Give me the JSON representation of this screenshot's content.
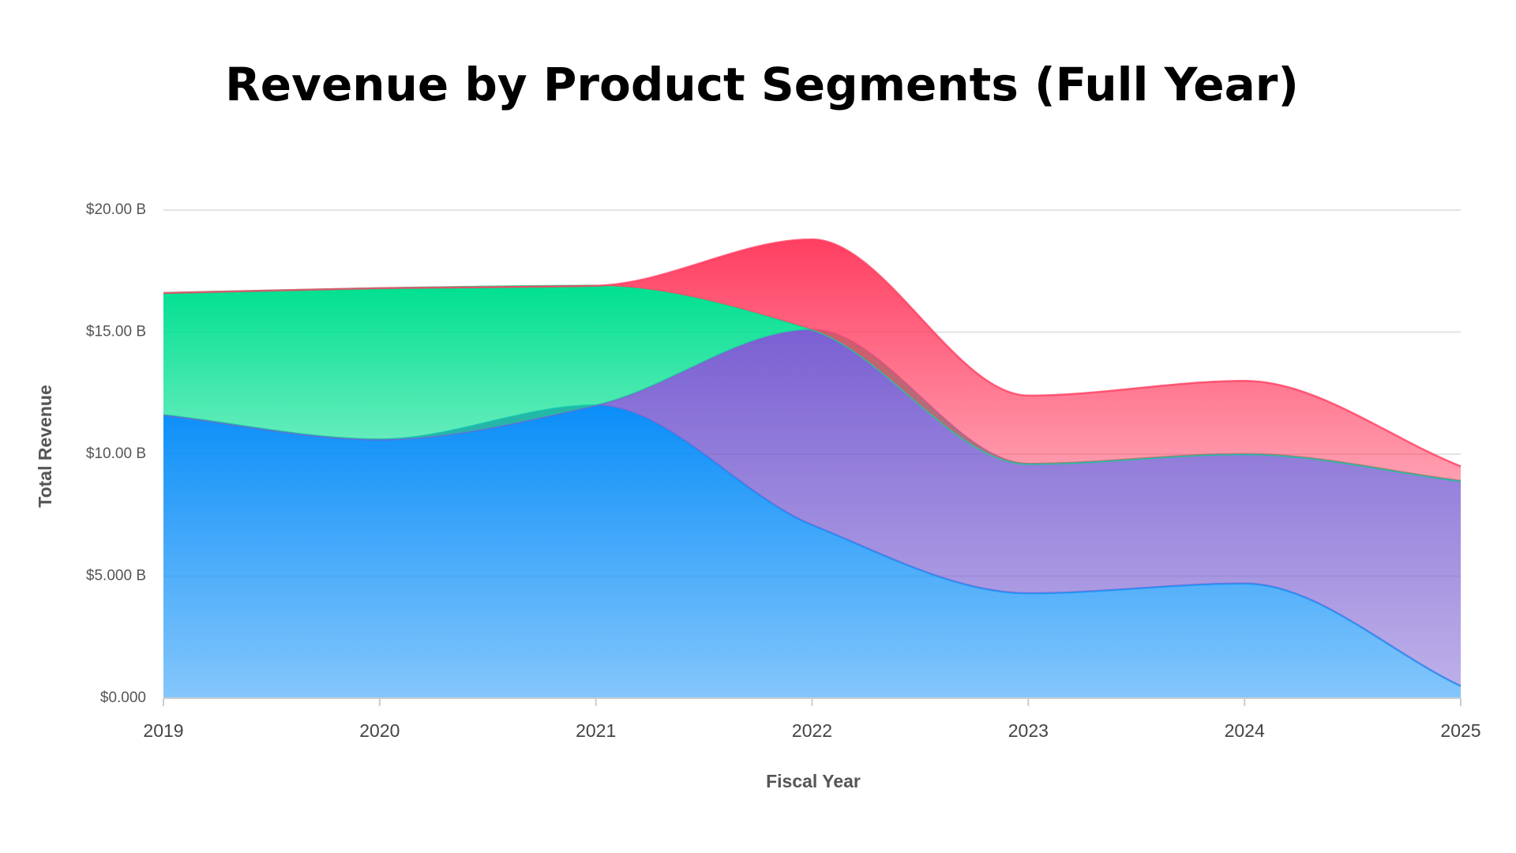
{
  "chart_data": {
    "type": "stacked_area",
    "title": "Revenue by Product Segments (Full Year)",
    "x_label": "Fiscal Year",
    "y_label": "Total Revenue",
    "categories": [
      "2019",
      "2020",
      "2021",
      "2022",
      "2023",
      "2024",
      "2025"
    ],
    "series": [
      {
        "color": "#0a8ef8",
        "values": [
          11.6,
          10.6,
          12.0,
          7.1,
          4.3,
          4.7,
          0.5
        ]
      },
      {
        "color": "#7a60d2",
        "values": [
          0,
          0,
          0,
          8.0,
          5.3,
          5.3,
          8.4
        ]
      },
      {
        "color": "#00e090",
        "values": [
          5.0,
          6.2,
          4.9,
          0,
          0,
          0,
          0
        ]
      },
      {
        "color": "#ff3f62",
        "values": [
          0,
          0,
          0,
          3.7,
          2.8,
          3.0,
          0.6
        ]
      }
    ],
    "ylim": [
      0,
      20
    ],
    "yticks": [
      {
        "value": 0,
        "label": "$0.000"
      },
      {
        "value": 5,
        "label": "$5.000 B"
      },
      {
        "value": 10,
        "label": "$10.00 B"
      },
      {
        "value": 15,
        "label": "$15.00 B"
      },
      {
        "value": 20,
        "label": "$20.00 B"
      }
    ],
    "grid": true
  }
}
